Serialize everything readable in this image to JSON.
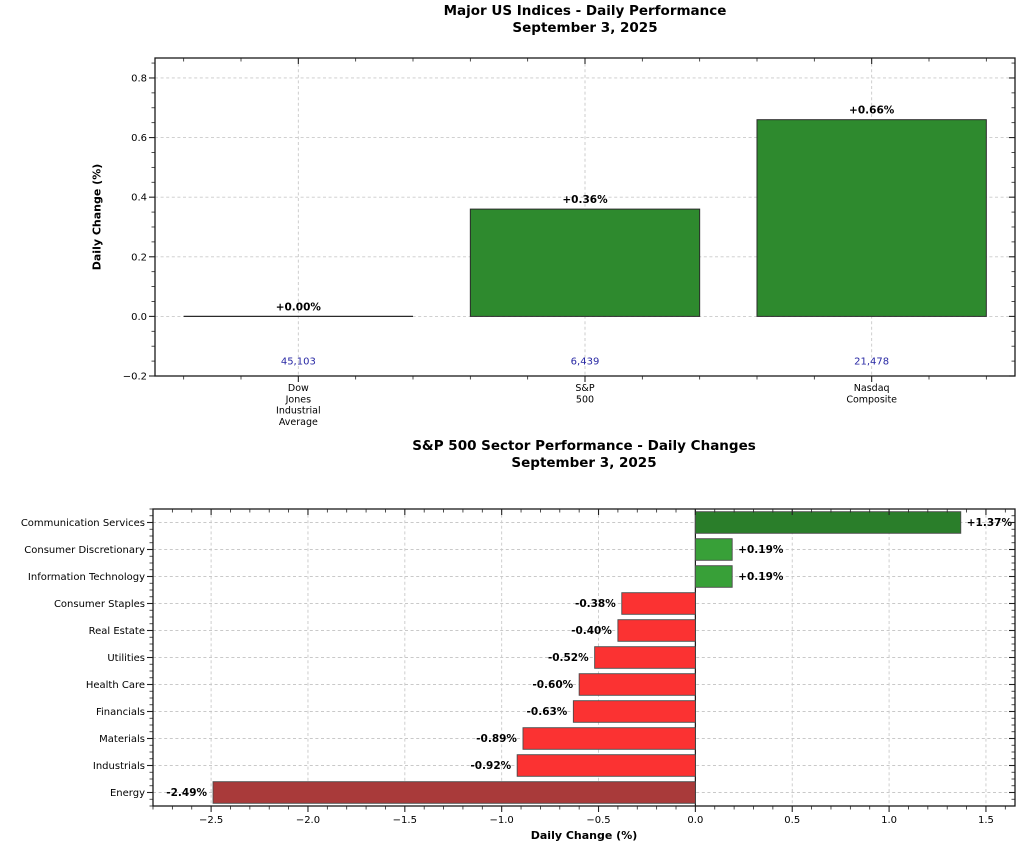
{
  "figure": {
    "background": "#ffffff",
    "date": "September 3, 2025"
  },
  "chart_data": [
    {
      "type": "bar",
      "title": "Major US Indices - Daily Performance",
      "subtitle": "September 3, 2025",
      "ylabel": "Daily Change (%)",
      "categories": [
        "Dow\nJones\nIndustrial\nAverage",
        "S&P\n500",
        "Nasdaq\nComposite"
      ],
      "values": [
        0.0,
        0.36,
        0.66
      ],
      "bar_labels": [
        "+0.00%",
        "+0.36%",
        "+0.66%"
      ],
      "index_levels": [
        "45,103",
        "6,439",
        "21,478"
      ],
      "index_levels_y": -0.15,
      "ylim": [
        -0.2,
        0.867
      ],
      "yticks": [
        -0.2,
        0.0,
        0.2,
        0.4,
        0.6,
        0.8
      ],
      "grid": true,
      "legend": "none",
      "colors": {
        "bar": "#2e8a2e",
        "bar_edge": "#2a2a2a",
        "index_label": "#2828a4",
        "value_label": "#000000",
        "grid_line": "#c9c9c9"
      }
    },
    {
      "type": "bar-horizontal",
      "title": "S&P 500 Sector Performance - Daily Changes",
      "subtitle": "September 3, 2025",
      "xlabel": "Daily Change (%)",
      "categories": [
        "Communication Services",
        "Consumer Discretionary",
        "Information Technology",
        "Consumer Staples",
        "Real Estate",
        "Utilities",
        "Health Care",
        "Financials",
        "Materials",
        "Industrials",
        "Energy"
      ],
      "values": [
        1.37,
        0.19,
        0.19,
        -0.38,
        -0.4,
        -0.52,
        -0.6,
        -0.63,
        -0.89,
        -0.92,
        -2.49
      ],
      "bar_labels": [
        "+1.37%",
        "+0.19%",
        "+0.19%",
        "-0.38%",
        "-0.40%",
        "-0.52%",
        "-0.60%",
        "-0.63%",
        "-0.89%",
        "-0.92%",
        "-2.49%"
      ],
      "bar_colors": [
        "#2a7e2a",
        "#38a038",
        "#38a038",
        "#fb3232",
        "#fb3232",
        "#fb3232",
        "#fb3232",
        "#fb3232",
        "#fb3232",
        "#fb3232",
        "#a93a3a"
      ],
      "xlim": [
        -2.8,
        1.65
      ],
      "xticks": [
        -2.5,
        -2.0,
        -1.5,
        -1.0,
        -0.5,
        0.0,
        0.5,
        1.0,
        1.5
      ],
      "grid": true,
      "zero_line": true,
      "legend": "none",
      "colors": {
        "bar_edge": "#4a4a4a",
        "value_label": "#000000",
        "grid_line": "#c9c9c9",
        "zero_line": "#1a1a1a"
      }
    }
  ]
}
